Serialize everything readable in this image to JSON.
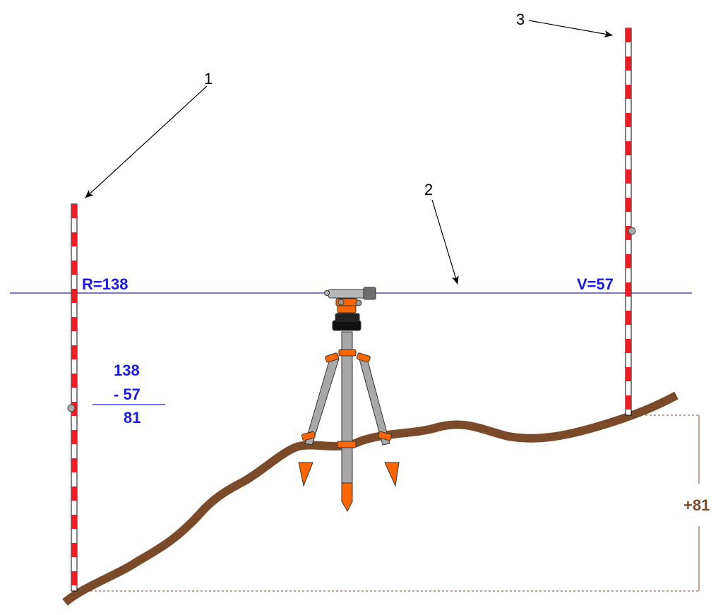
{
  "callouts": {
    "one": "1",
    "two": "2",
    "three": "3"
  },
  "readings": {
    "back": "R=138",
    "fore": "V=57"
  },
  "calculation": {
    "minuend": "138",
    "subtrahend": "- 57",
    "result": "81"
  },
  "height_difference": "+81",
  "colors": {
    "sight_line": "#2a2a9e",
    "reading_text": "#1a1aee",
    "ground": "#7b4a28",
    "rod_red": "#ee1c24",
    "orange": "#ff6600",
    "leg_gray": "#a8a8a8"
  }
}
